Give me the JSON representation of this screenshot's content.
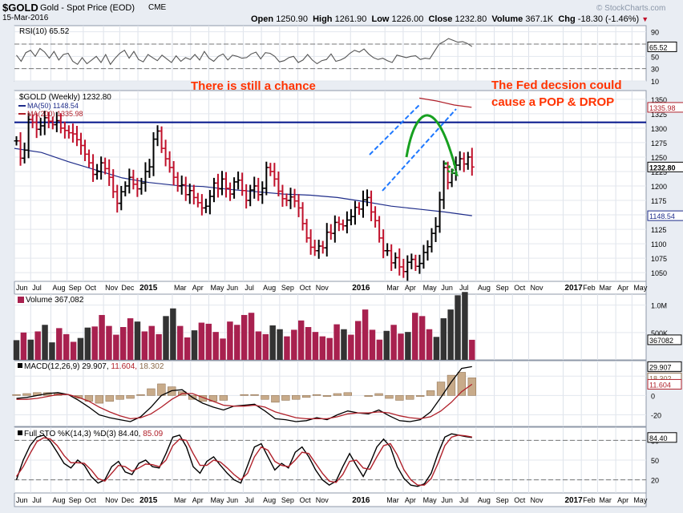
{
  "header": {
    "symbol": "$GOLD",
    "description": "Gold - Spot Price (EOD)",
    "exchange": "CME",
    "date": "15-Mar-2016",
    "watermark": "© StockCharts.com",
    "open_label": "Open",
    "open": "1250.90",
    "high_label": "High",
    "high": "1261.90",
    "low_label": "Low",
    "low": "1226.00",
    "close_label": "Close",
    "close": "1232.80",
    "volume_label": "Volume",
    "volume": "367.1K",
    "chg_label": "Chg",
    "chg": "-18.30 (-1.46%)"
  },
  "colors": {
    "bull": "#000000",
    "bear": "#c0102a",
    "ma50": "#1f2d8a",
    "ma200": "#b0202a",
    "annotation": "#ff3300",
    "resistance": "#00138a",
    "channel": "#1e78ff",
    "arc": "#17a020",
    "vol_bull": "#333333",
    "vol_bear": "#a8214f",
    "macd_hist": "#c8ab8a",
    "bg": "#e9edf3",
    "panel": "#ffffff"
  },
  "annotations": {
    "left": "There is still a chance",
    "right_line1": "The Fed decsion could",
    "right_line2": "cause a POP & DROP"
  },
  "x_labels": [
    {
      "t": "Jun",
      "w": 0
    },
    {
      "t": "Jul",
      "w": 4
    },
    {
      "t": "Aug",
      "w": 9
    },
    {
      "t": "Sep",
      "w": 13
    },
    {
      "t": "Oct",
      "w": 17
    },
    {
      "t": "Nov",
      "w": 22
    },
    {
      "t": "Dec",
      "w": 26
    },
    {
      "t": "2015",
      "w": 30.5,
      "bold": true
    },
    {
      "t": "Mar",
      "w": 39
    },
    {
      "t": "Apr",
      "w": 43.5
    },
    {
      "t": "May",
      "w": 48
    },
    {
      "t": "Jun",
      "w": 52
    },
    {
      "t": "Jul",
      "w": 56.5
    },
    {
      "t": "Aug",
      "w": 61
    },
    {
      "t": "Sep",
      "w": 65.5
    },
    {
      "t": "Oct",
      "w": 70
    },
    {
      "t": "Nov",
      "w": 74
    },
    {
      "t": "2016",
      "w": 83,
      "bold": true
    },
    {
      "t": "Mar",
      "w": 91.5
    },
    {
      "t": "Apr",
      "w": 96
    },
    {
      "t": "May",
      "w": 100.5
    },
    {
      "t": "Jun",
      "w": 105
    },
    {
      "t": "Jul",
      "w": 109.5
    },
    {
      "t": "Aug",
      "w": 114
    },
    {
      "t": "Sep",
      "w": 118.5
    },
    {
      "t": "Oct",
      "w": 123
    },
    {
      "t": "Nov",
      "w": 127
    },
    {
      "t": "2017",
      "w": 135.5,
      "bold": true
    },
    {
      "t": "Feb",
      "w": 140
    },
    {
      "t": "Mar",
      "w": 144
    },
    {
      "t": "Apr",
      "w": 148.5
    },
    {
      "t": "May",
      "w": 152.5
    }
  ],
  "chart_data": [
    {
      "id": "rsi",
      "type": "line",
      "title": "RSI(10) 65.52",
      "ylim": [
        10,
        100
      ],
      "yticks": [
        90,
        70,
        50,
        30,
        10
      ],
      "ref_lines": [
        70,
        30
      ],
      "tag": "65.52",
      "series": [
        {
          "values": [
            52,
            42,
            56,
            60,
            50,
            63,
            57,
            47,
            58,
            44,
            53,
            55,
            42,
            37,
            48,
            38,
            44,
            50,
            40,
            53,
            37,
            47,
            55,
            60,
            47,
            58,
            45,
            41,
            53,
            48,
            43,
            52,
            46,
            40,
            51,
            42,
            48,
            45,
            53,
            44,
            58,
            47,
            42,
            50,
            54,
            44,
            52,
            50,
            47,
            48,
            54,
            57,
            46,
            56,
            55,
            50,
            41,
            43,
            48,
            50,
            40,
            44,
            53,
            44,
            38,
            43,
            45,
            54,
            42,
            44,
            48,
            55,
            60,
            57,
            62,
            54,
            48,
            45,
            47,
            43,
            40,
            52,
            50,
            48,
            50,
            51,
            45,
            47,
            46,
            58,
            70,
            74,
            79,
            76,
            73,
            74,
            71,
            66
          ]
        }
      ]
    },
    {
      "id": "price",
      "type": "ohlc",
      "title": "$GOLD (Weekly) 1232.80",
      "ylim": [
        1035,
        1365
      ],
      "yticks": [
        1350,
        1325,
        1300,
        1275,
        1250,
        1225,
        1200,
        1175,
        1150,
        1125,
        1100,
        1075,
        1050
      ],
      "resistance": 1310,
      "legend": [
        {
          "name": "MA(50) 1148.54",
          "color": "#1f2d8a"
        },
        {
          "name": "MA(200) 1335.98",
          "color": "#b0202a"
        }
      ],
      "tags": [
        {
          "value": 1335.98,
          "text": "1335.98",
          "color": "#b0202a",
          "bold": false
        },
        {
          "value": 1232.8,
          "text": "1232.80",
          "color": "#000000",
          "bold": true
        },
        {
          "value": 1148.54,
          "text": "1148.54",
          "color": "#1f2d8a",
          "bold": false
        }
      ],
      "closes": [
        1278,
        1248,
        1262,
        1315,
        1310,
        1298,
        1304,
        1318,
        1312,
        1306,
        1313,
        1300,
        1296,
        1292,
        1290,
        1280,
        1270,
        1255,
        1240,
        1220,
        1225,
        1240,
        1230,
        1215,
        1190,
        1170,
        1190,
        1200,
        1215,
        1203,
        1195,
        1205,
        1225,
        1233,
        1281,
        1295,
        1265,
        1247,
        1232,
        1215,
        1200,
        1202,
        1185,
        1192,
        1180,
        1171,
        1162,
        1165,
        1182,
        1205,
        1195,
        1212,
        1196,
        1186,
        1207,
        1210,
        1192,
        1175,
        1193,
        1200,
        1185,
        1196,
        1232,
        1225,
        1212,
        1191,
        1178,
        1175,
        1181,
        1174,
        1162,
        1135,
        1110,
        1094,
        1088,
        1096,
        1093,
        1120,
        1118,
        1137,
        1134,
        1131,
        1141,
        1147,
        1163,
        1160,
        1176,
        1180,
        1155,
        1140,
        1110,
        1088,
        1088,
        1067,
        1076,
        1060,
        1052,
        1068,
        1073,
        1061,
        1066,
        1085,
        1095,
        1118,
        1130,
        1176,
        1232,
        1206,
        1222,
        1236,
        1247,
        1238,
        1250,
        1232.8
      ],
      "ma50": {
        "start": 1265,
        "values": [
          1265,
          1258,
          1242,
          1228,
          1214,
          1206,
          1201,
          1199,
          1194,
          1190,
          1186,
          1184,
          1180,
          1173,
          1165,
          1160,
          1155,
          1148.5
        ]
      },
      "ma200": {
        "start": 1352,
        "values": [
          1352,
          1347,
          1340,
          1335.98
        ]
      }
    },
    {
      "id": "volume",
      "type": "bar",
      "title": "Volume 367,082",
      "ylim": [
        0,
        1200000
      ],
      "yticks": [
        {
          "v": 1000000,
          "t": "1.0M"
        },
        {
          "v": 500000,
          "t": "500K"
        }
      ],
      "tag": "367082",
      "values": [
        360000,
        500000,
        370000,
        520000,
        640000,
        320000,
        580000,
        470000,
        330000,
        400000,
        590000,
        610000,
        820000,
        620000,
        460000,
        600000,
        760000,
        700000,
        520000,
        620000,
        470000,
        800000,
        940000,
        620000,
        410000,
        540000,
        680000,
        660000,
        510000,
        390000,
        700000,
        640000,
        820000,
        860000,
        520000,
        470000,
        630000,
        560000,
        430000,
        550000,
        720000,
        600000,
        510000,
        430000,
        400000,
        650000,
        560000,
        460000,
        710000,
        920000,
        550000,
        370000,
        530000,
        640000,
        480000,
        510000,
        860000,
        800000,
        560000,
        420000,
        760000,
        920000,
        1180000,
        1240000,
        367082
      ],
      "bull": [
        1,
        0,
        1,
        0,
        1,
        1,
        0,
        0,
        0,
        1,
        1,
        0,
        0,
        0,
        0,
        0,
        0,
        1,
        0,
        0,
        0,
        1,
        1,
        0,
        0,
        1,
        0,
        0,
        0,
        0,
        0,
        0,
        0,
        0,
        0,
        0,
        1,
        1,
        0,
        0,
        0,
        0,
        0,
        0,
        0,
        0,
        1,
        0,
        0,
        0,
        0,
        0,
        1,
        0,
        0,
        1,
        0,
        0,
        0,
        1,
        1,
        1,
        1,
        1,
        0
      ]
    },
    {
      "id": "macd",
      "type": "line",
      "title": "MACD(12,26,9)",
      "values_text": [
        "29.907",
        "11.604",
        "18.302"
      ],
      "ylim": [
        -32,
        36
      ],
      "yticks": [
        20,
        0,
        -20
      ],
      "tags": [
        {
          "value": 29.907,
          "text": "29.907",
          "color": "#000000"
        },
        {
          "value": 18.302,
          "text": "18.302",
          "color": "#8a6a4a"
        },
        {
          "value": 11.604,
          "text": "11.604",
          "color": "#b0202a"
        }
      ],
      "series": [
        {
          "name": "macd",
          "color": "#000000",
          "values": [
            -3,
            -2,
            0,
            2,
            3,
            1,
            -5,
            -12,
            -20,
            -23,
            -25,
            -27,
            -22,
            -12,
            0,
            5,
            6,
            -2,
            -8,
            -12,
            -15,
            -11,
            -10,
            -9,
            -16,
            -24,
            -25,
            -27,
            -26,
            -23,
            -25,
            -20,
            -16,
            -18,
            -19,
            -15,
            -21,
            -26,
            -27,
            -25,
            -17,
            -2,
            14,
            28,
            29.9
          ]
        },
        {
          "name": "signal",
          "color": "#b0202a",
          "values": [
            -4,
            -4,
            -3,
            -1,
            1,
            1,
            -2,
            -6,
            -12,
            -17,
            -21,
            -24,
            -23,
            -19,
            -12,
            -4,
            2,
            2,
            -2,
            -6,
            -10,
            -11,
            -11,
            -10,
            -12,
            -17,
            -20,
            -23,
            -24,
            -24,
            -24,
            -22,
            -19,
            -18,
            -18,
            -17,
            -18,
            -21,
            -23,
            -24,
            -22,
            -16,
            -7,
            4,
            11.6
          ]
        }
      ],
      "hist": [
        1,
        2,
        3,
        3,
        2,
        0,
        -3,
        -6,
        -8,
        -6,
        -4,
        -3,
        1,
        7,
        12,
        9,
        4,
        -4,
        -6,
        -6,
        -5,
        0,
        1,
        1,
        -4,
        -7,
        -5,
        -4,
        -2,
        1,
        -1,
        2,
        3,
        0,
        -1,
        2,
        -3,
        -5,
        -4,
        -1,
        5,
        14,
        21,
        24,
        18.3
      ]
    },
    {
      "id": "sto",
      "type": "line",
      "title": "Full STO %K(14,3) %D(3)",
      "values_text": [
        "84.40",
        "85.09"
      ],
      "ylim": [
        0,
        100
      ],
      "yticks": [
        80,
        50,
        20
      ],
      "ref_lines": [
        80,
        20
      ],
      "tag": "84.40",
      "series": [
        {
          "name": "K",
          "color": "#000000",
          "values": [
            20,
            50,
            72,
            85,
            88,
            78,
            62,
            45,
            38,
            50,
            42,
            25,
            15,
            20,
            40,
            48,
            32,
            28,
            45,
            50,
            40,
            38,
            60,
            85,
            88,
            70,
            40,
            30,
            48,
            55,
            42,
            30,
            20,
            15,
            42,
            70,
            75,
            55,
            35,
            45,
            38,
            62,
            70,
            55,
            35,
            20,
            12,
            18,
            40,
            60,
            42,
            25,
            45,
            70,
            82,
            70,
            40,
            22,
            12,
            10,
            14,
            30,
            60,
            85,
            90,
            88,
            86,
            84.4
          ]
        },
        {
          "name": "D",
          "color": "#b0202a",
          "values": [
            25,
            40,
            60,
            78,
            84,
            82,
            72,
            57,
            46,
            46,
            45,
            35,
            22,
            18,
            30,
            42,
            40,
            33,
            38,
            44,
            43,
            40,
            50,
            72,
            82,
            80,
            60,
            42,
            42,
            50,
            47,
            38,
            28,
            20,
            30,
            55,
            70,
            65,
            48,
            42,
            40,
            50,
            62,
            60,
            45,
            30,
            18,
            16,
            28,
            48,
            50,
            38,
            36,
            55,
            72,
            75,
            58,
            35,
            20,
            12,
            12,
            22,
            45,
            72,
            85,
            88,
            87,
            85.09
          ]
        }
      ]
    }
  ]
}
